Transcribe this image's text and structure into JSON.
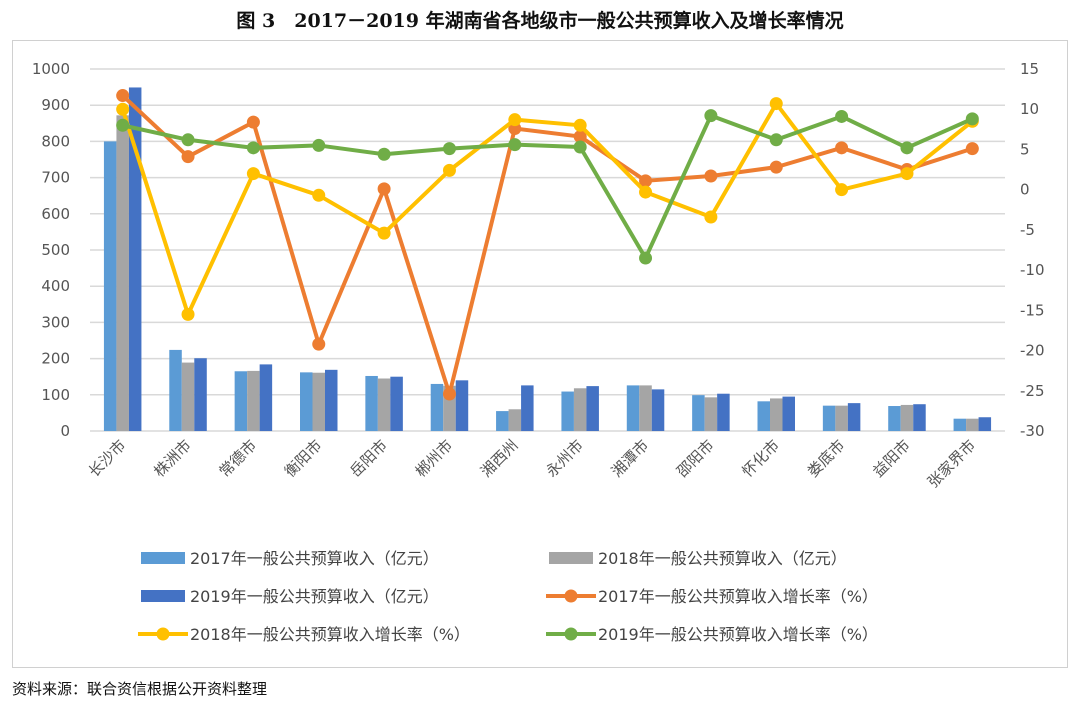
{
  "title": "图 3　2017－2019 年湖南省各地级市一般公共预算收入及增长率情况",
  "source": "资料来源：联合资信根据公开资料整理",
  "chart_data": {
    "type": "bar+line",
    "title": "图 3　2017－2019 年湖南省各地级市一般公共预算收入及增长率情况",
    "categories": [
      "长沙市",
      "株洲市",
      "常德市",
      "衡阳市",
      "岳阳市",
      "郴州市",
      "湘西州",
      "永州市",
      "湘潭市",
      "邵阳市",
      "怀化市",
      "娄底市",
      "益阳市",
      "张家界市"
    ],
    "y_left": {
      "range": [
        0,
        1000
      ],
      "ticks": [
        0,
        100,
        200,
        300,
        400,
        500,
        600,
        700,
        800,
        900,
        1000
      ]
    },
    "y_right": {
      "range": [
        -30,
        15
      ],
      "ticks": [
        15,
        10,
        5,
        0,
        -5,
        -10,
        -15,
        -20,
        -25,
        -30
      ]
    },
    "grid": true,
    "legend_position": "bottom",
    "bar_series": [
      {
        "name": "2017年一般公共预算收入（亿元）",
        "color": "#5B9BD5",
        "values": [
          800,
          224,
          165,
          162,
          152,
          130,
          55,
          109,
          126,
          99,
          82,
          70,
          69,
          34
        ]
      },
      {
        "name": "2018年一般公共预算收入（亿元）",
        "color": "#A5A5A5",
        "values": [
          872,
          189,
          166,
          161,
          145,
          125,
          60,
          118,
          126,
          93,
          90,
          70,
          72,
          34
        ]
      },
      {
        "name": "2019年一般公共预算收入（亿元）",
        "color": "#4472C4",
        "values": [
          949,
          201,
          184,
          169,
          150,
          140,
          126,
          124,
          115,
          103,
          95,
          77,
          74,
          38
        ]
      }
    ],
    "line_series": [
      {
        "name": "2017年一般公共预算收入增长率（%）",
        "color": "#ED7D31",
        "values": [
          11.7,
          4.1,
          8.4,
          -19.2,
          0.1,
          -25.4,
          7.6,
          6.6,
          1.1,
          1.7,
          2.8,
          5.2,
          2.5,
          5.1
        ]
      },
      {
        "name": "2018年一般公共预算收入增长率（%）",
        "color": "#FFC000",
        "values": [
          10.0,
          -15.5,
          2.0,
          -0.7,
          -5.4,
          2.4,
          8.7,
          8.0,
          -0.3,
          -3.4,
          10.7,
          0.0,
          2.0,
          8.5
        ]
      },
      {
        "name": "2019年一般公共预算收入增长率（%）",
        "color": "#70AD47",
        "values": [
          8.0,
          6.2,
          5.2,
          5.5,
          4.4,
          5.1,
          5.6,
          5.3,
          -8.5,
          9.2,
          6.2,
          9.1,
          5.2,
          8.8
        ]
      }
    ]
  }
}
